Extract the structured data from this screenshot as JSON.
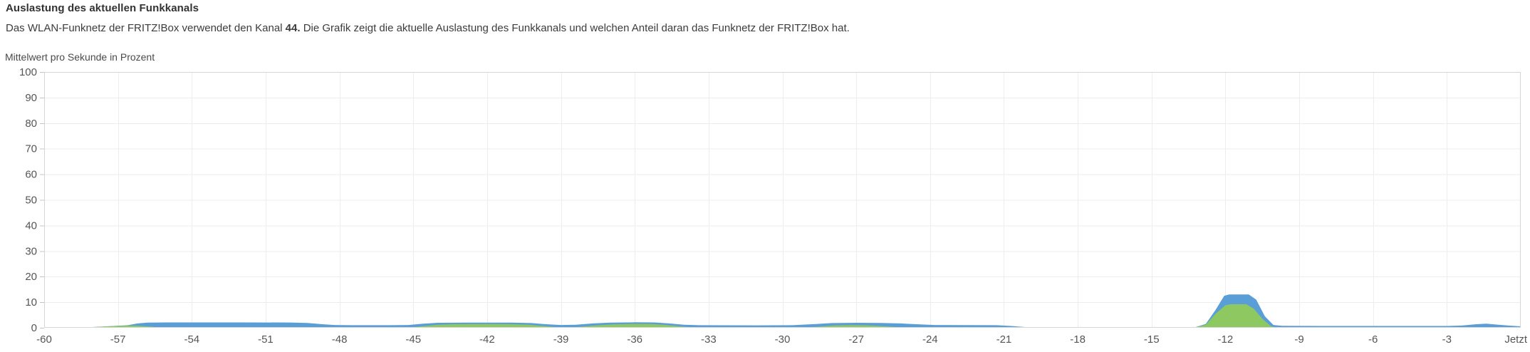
{
  "panel": {
    "title": "Auslastung des aktuellen Funkkanals",
    "description": {
      "before": "Das WLAN-Funknetz der FRITZ!Box verwendet den Kanal ",
      "bold": "44.",
      "after": " Die Grafik zeigt die aktuelle Auslastung des Funkkanals und welchen Anteil daran das Funknetz der FRITZ!Box hat."
    },
    "axis_caption": "Mittelwert pro Sekunde in Prozent"
  },
  "colors": {
    "total_area": "#5a9ed7",
    "fritzbox_area": "#8dc860",
    "grid": "#ededed",
    "plot_border": "#d6d6d6",
    "tick_mark": "#c4c4c4",
    "tick_text": "#555555",
    "background": "#ffffff"
  },
  "chart_data": {
    "type": "area",
    "title": "Auslastung des aktuellen Funkkanals",
    "ylabel": "Mittelwert pro Sekunde in Prozent",
    "xlabel": "",
    "ylim": [
      0,
      100
    ],
    "x_range": [
      -60,
      0
    ],
    "y_ticks": [
      0,
      10,
      20,
      30,
      40,
      50,
      60,
      70,
      80,
      90,
      100
    ],
    "x_tick_labels": [
      "-60",
      "-57",
      "-54",
      "-51",
      "-48",
      "-45",
      "-42",
      "-39",
      "-36",
      "-33",
      "-30",
      "-27",
      "-24",
      "-21",
      "-18",
      "-15",
      "-12",
      "-9",
      "-6",
      "-3",
      "Jetzt"
    ],
    "grid": true,
    "legend": "none",
    "series": [
      {
        "id": "channel-total",
        "role": "total-utilization",
        "color": "#5a9ed7",
        "points": [
          [
            -60,
            0
          ],
          [
            -59.0,
            0
          ],
          [
            -58.3,
            0.15
          ],
          [
            -57.6,
            0.5
          ],
          [
            -57.0,
            0.8
          ],
          [
            -56.6,
            1.0
          ],
          [
            -56.2,
            1.7
          ],
          [
            -55.8,
            2.0
          ],
          [
            -55.0,
            2.1
          ],
          [
            -52.0,
            2.1
          ],
          [
            -50.0,
            2.05
          ],
          [
            -49.3,
            1.9
          ],
          [
            -48.7,
            1.4
          ],
          [
            -48.2,
            1.1
          ],
          [
            -47.5,
            1.0
          ],
          [
            -46.0,
            1.0
          ],
          [
            -45.2,
            1.1
          ],
          [
            -44.6,
            1.6
          ],
          [
            -44.0,
            1.95
          ],
          [
            -43.0,
            2.0
          ],
          [
            -41.0,
            2.0
          ],
          [
            -40.2,
            1.85
          ],
          [
            -39.6,
            1.4
          ],
          [
            -39.0,
            1.1
          ],
          [
            -38.4,
            1.2
          ],
          [
            -37.7,
            1.7
          ],
          [
            -37.0,
            2.0
          ],
          [
            -36.0,
            2.15
          ],
          [
            -35.2,
            2.1
          ],
          [
            -34.6,
            1.7
          ],
          [
            -34.0,
            1.2
          ],
          [
            -33.4,
            1.0
          ],
          [
            -31.0,
            0.95
          ],
          [
            -29.6,
            1.0
          ],
          [
            -28.8,
            1.4
          ],
          [
            -28.0,
            1.85
          ],
          [
            -27.0,
            1.95
          ],
          [
            -26.0,
            1.9
          ],
          [
            -25.2,
            1.7
          ],
          [
            -24.4,
            1.3
          ],
          [
            -23.8,
            1.1
          ],
          [
            -22.5,
            1.05
          ],
          [
            -21.3,
            1.0
          ],
          [
            -20.7,
            0.7
          ],
          [
            -20.1,
            0.25
          ],
          [
            -19.6,
            0.05
          ],
          [
            -19.2,
            0
          ],
          [
            -13.3,
            0
          ],
          [
            -12.8,
            1.5
          ],
          [
            -12.4,
            7
          ],
          [
            -12.05,
            12.5
          ],
          [
            -11.85,
            13
          ],
          [
            -11.05,
            13
          ],
          [
            -10.75,
            11
          ],
          [
            -10.4,
            4.5
          ],
          [
            -10.05,
            1.1
          ],
          [
            -9.7,
            0.75
          ],
          [
            -8.0,
            0.7
          ],
          [
            -5.0,
            0.7
          ],
          [
            -3.0,
            0.7
          ],
          [
            -2.4,
            0.85
          ],
          [
            -1.8,
            1.4
          ],
          [
            -1.4,
            1.6
          ],
          [
            -0.9,
            1.2
          ],
          [
            -0.4,
            0.8
          ],
          [
            0,
            0.55
          ]
        ]
      },
      {
        "id": "fritzbox-share",
        "role": "fritzbox-share",
        "color": "#8dc860",
        "points": [
          [
            -60,
            0
          ],
          [
            -59.0,
            0
          ],
          [
            -58.3,
            0.12
          ],
          [
            -57.6,
            0.45
          ],
          [
            -57.0,
            0.72
          ],
          [
            -56.6,
            0.85
          ],
          [
            -56.2,
            0.8
          ],
          [
            -55.7,
            0.45
          ],
          [
            -55.3,
            0.1
          ],
          [
            -55.0,
            0
          ],
          [
            -46.0,
            0
          ],
          [
            -45.2,
            0.05
          ],
          [
            -44.6,
            0.6
          ],
          [
            -44.0,
            1.2
          ],
          [
            -43.4,
            1.4
          ],
          [
            -42.0,
            1.45
          ],
          [
            -41.0,
            1.4
          ],
          [
            -40.3,
            1.2
          ],
          [
            -39.7,
            0.7
          ],
          [
            -39.2,
            0.2
          ],
          [
            -38.8,
            0.1
          ],
          [
            -38.3,
            0.3
          ],
          [
            -37.6,
            0.9
          ],
          [
            -36.9,
            1.3
          ],
          [
            -36.0,
            1.5
          ],
          [
            -35.3,
            1.45
          ],
          [
            -34.7,
            1.1
          ],
          [
            -34.1,
            0.5
          ],
          [
            -33.6,
            0.1
          ],
          [
            -33.2,
            0
          ],
          [
            -29.4,
            0
          ],
          [
            -28.6,
            0.4
          ],
          [
            -27.9,
            0.9
          ],
          [
            -27.2,
            1.05
          ],
          [
            -26.5,
            0.95
          ],
          [
            -25.8,
            0.55
          ],
          [
            -25.2,
            0.15
          ],
          [
            -24.8,
            0
          ],
          [
            -13.3,
            0
          ],
          [
            -12.8,
            1.2
          ],
          [
            -12.4,
            5.5
          ],
          [
            -12.0,
            8.8
          ],
          [
            -11.8,
            9.2
          ],
          [
            -11.15,
            9.2
          ],
          [
            -10.85,
            7.5
          ],
          [
            -10.5,
            3.5
          ],
          [
            -10.15,
            0.6
          ],
          [
            -9.9,
            0
          ],
          [
            0,
            0
          ]
        ]
      }
    ]
  }
}
